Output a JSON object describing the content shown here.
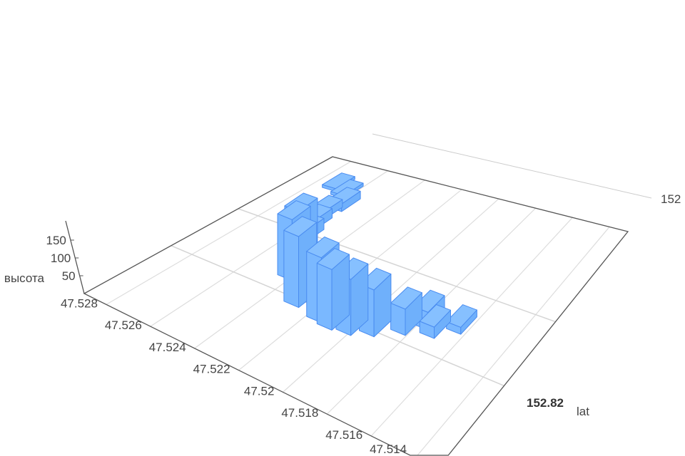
{
  "chart_data": {
    "type": "bar3D",
    "title": "",
    "x_axis": {
      "label": "",
      "ticks": [
        "47.528",
        "47.526",
        "47.524",
        "47.522",
        "47.52",
        "47.518",
        "47.516",
        "47.514"
      ],
      "range": [
        47.513,
        47.529
      ]
    },
    "y_axis": {
      "label": "lat",
      "ticks": [
        "152.82"
      ],
      "far_tick_partial": "152",
      "range": [
        152.813,
        152.833
      ]
    },
    "z_axis": {
      "label": "высота",
      "ticks": [
        "50",
        "100",
        "150"
      ],
      "range": [
        0,
        200
      ]
    },
    "grid": true,
    "bar_color": "#7ab8ff",
    "bar_edge_color": "#4a8cf0",
    "bars": [
      {
        "lng": 47.5271,
        "lat": 152.8306,
        "value": 10
      },
      {
        "lng": 47.5264,
        "lat": 152.8302,
        "value": 10
      },
      {
        "lng": 47.5258,
        "lat": 152.829,
        "value": 25
      },
      {
        "lng": 47.526,
        "lat": 152.8278,
        "value": 25
      },
      {
        "lng": 47.5258,
        "lat": 152.8266,
        "value": 30
      },
      {
        "lng": 47.5255,
        "lat": 152.8254,
        "value": 35
      },
      {
        "lng": 47.525,
        "lat": 152.824,
        "value": 140
      },
      {
        "lng": 47.5242,
        "lat": 152.822,
        "value": 175
      },
      {
        "lng": 47.5229,
        "lat": 152.8202,
        "value": 190
      },
      {
        "lng": 47.5216,
        "lat": 152.8198,
        "value": 165
      },
      {
        "lng": 47.521,
        "lat": 152.8196,
        "value": 150
      },
      {
        "lng": 47.5202,
        "lat": 152.8198,
        "value": 135
      },
      {
        "lng": 47.5194,
        "lat": 152.8204,
        "value": 110
      },
      {
        "lng": 47.5184,
        "lat": 152.8214,
        "value": 60
      },
      {
        "lng": 47.5178,
        "lat": 152.8224,
        "value": 40
      },
      {
        "lng": 47.5173,
        "lat": 152.822,
        "value": 25
      },
      {
        "lng": 47.5165,
        "lat": 152.823,
        "value": 15
      }
    ]
  }
}
